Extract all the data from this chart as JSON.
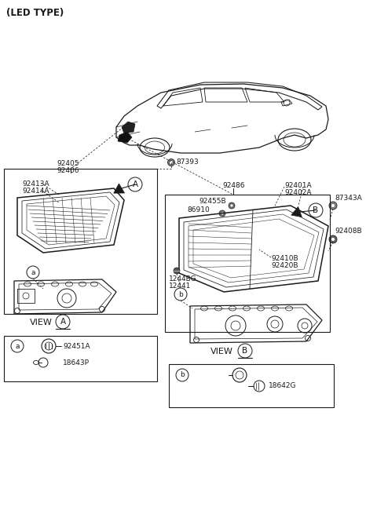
{
  "bg_color": "#ffffff",
  "line_color": "#1a1a1a",
  "text_color": "#1a1a1a",
  "gray_color": "#555555",
  "parts": {
    "led_type": "(LED TYPE)",
    "p87393": "87393",
    "p92405": "92405",
    "p92406": "92406",
    "p92413A": "92413A",
    "p92414A": "92414A",
    "p92486": "92486",
    "p92455B": "92455B",
    "p86910": "86910",
    "p92401A": "92401A",
    "p92402A": "92402A",
    "p87343A": "87343A",
    "p92408B": "92408B",
    "p92410B": "92410B",
    "p92420B": "92420B",
    "p1244BG": "1244BG",
    "p12441": "12441",
    "p92451A": "92451A",
    "p18643P": "18643P",
    "p18642G": "18642G"
  },
  "fs": 6.5,
  "fs_title": 8.5,
  "fs_view": 8.0
}
